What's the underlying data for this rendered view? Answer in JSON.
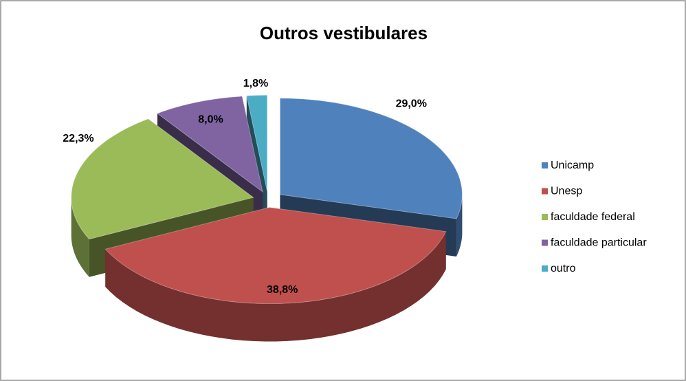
{
  "chart_data": {
    "type": "pie",
    "title": "Outros vestibulares",
    "categories": [
      "Unicamp",
      "Unesp",
      "faculdade federal",
      "faculdade particular",
      "outro"
    ],
    "values": [
      29.0,
      38.8,
      22.3,
      8.0,
      1.8
    ],
    "value_labels": [
      "29,0%",
      "38,8%",
      "22,3%",
      "8,0%",
      "1,8%"
    ],
    "colors": [
      "#4f81bd",
      "#c0504d",
      "#9bbb59",
      "#8064a2",
      "#4bacc6"
    ],
    "legend": "right"
  }
}
